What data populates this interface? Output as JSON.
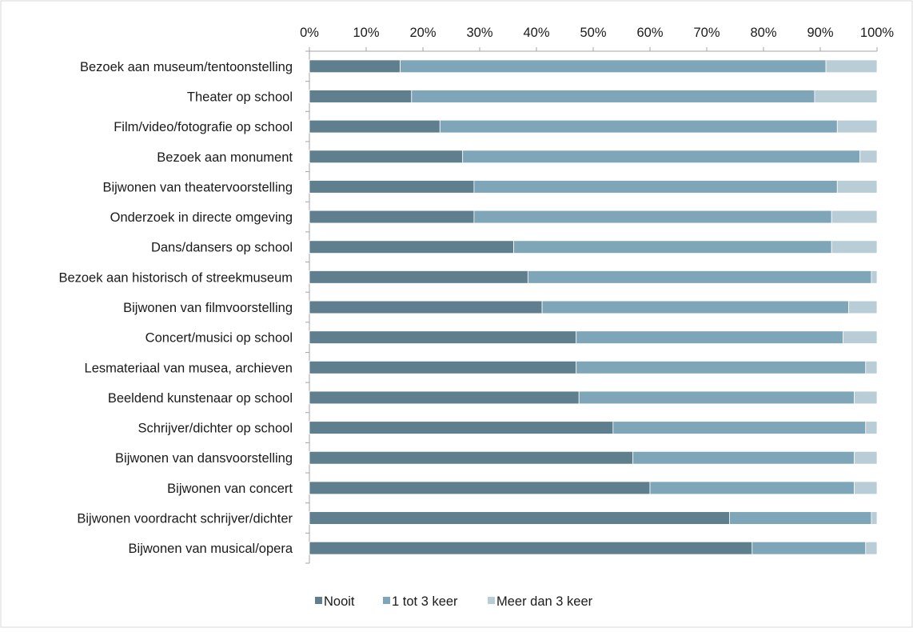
{
  "chart_data": {
    "type": "bar",
    "orientation": "horizontal",
    "stacked": "percent",
    "title": "",
    "xlabel": "",
    "ylabel": "",
    "xlim": [
      0,
      100
    ],
    "x_ticks": [
      "0%",
      "10%",
      "20%",
      "30%",
      "40%",
      "50%",
      "60%",
      "70%",
      "80%",
      "90%",
      "100%"
    ],
    "x_tick_values": [
      0,
      10,
      20,
      30,
      40,
      50,
      60,
      70,
      80,
      90,
      100
    ],
    "grid": false,
    "legend_position": "bottom",
    "categories": [
      "Bezoek aan museum/tentoonstelling",
      "Theater op school",
      "Film/video/fotografie op school",
      "Bezoek aan monument",
      "Bijwonen van theatervoorstelling",
      "Onderzoek in directe omgeving",
      "Dans/dansers op school",
      "Bezoek aan historisch of streekmuseum",
      "Bijwonen van filmvoorstelling",
      "Concert/musici op school",
      "Lesmateriaal van musea, archieven",
      "Beeldend kunstenaar op school",
      "Schrijver/dichter op school",
      "Bijwonen van dansvoorstelling",
      "Bijwonen van concert",
      "Bijwonen voordracht schrijver/dichter",
      "Bijwonen van musical/opera"
    ],
    "series": [
      {
        "name": "Nooit",
        "color": "#5f7f8e",
        "values": [
          16,
          18,
          23,
          27,
          29,
          29,
          36,
          38.5,
          41,
          47,
          47,
          47.5,
          53.5,
          57,
          60,
          74,
          78
        ]
      },
      {
        "name": "1 tot 3 keer",
        "color": "#7ea6b8",
        "values": [
          75,
          71,
          70,
          70,
          64,
          63,
          56,
          60.5,
          54,
          47,
          51,
          48.5,
          44.5,
          39,
          36,
          25,
          20
        ]
      },
      {
        "name": "Meer dan 3 keer",
        "color": "#b9cdd7",
        "values": [
          9,
          11,
          7,
          3,
          7,
          8,
          8,
          1,
          5,
          6,
          2,
          4,
          2,
          4,
          4,
          1,
          2
        ]
      }
    ]
  }
}
